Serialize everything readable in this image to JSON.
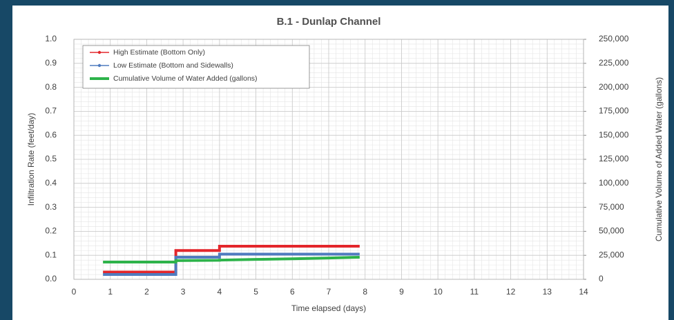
{
  "chart_data": {
    "type": "line",
    "title": "B.1 - Dunlap Channel",
    "xlabel": "Time elapsed (days)",
    "ylabel": "Infiltration Rate (feet/day)",
    "y2label": "Cumulative Volume of Added Water (gallons)",
    "xlim": [
      0,
      14
    ],
    "xticks": [
      0,
      1,
      2,
      3,
      4,
      5,
      6,
      7,
      8,
      9,
      10,
      11,
      12,
      13,
      14
    ],
    "ylim": [
      0,
      1
    ],
    "yticks": [
      {
        "value": 0,
        "label": "0.0"
      },
      0.1,
      0.2,
      0.3,
      0.4,
      0.5,
      0.6,
      0.7,
      0.8,
      0.9,
      {
        "value": 1,
        "label": "1.0"
      }
    ],
    "y2lim": [
      0,
      250000
    ],
    "y2ticks": [
      0,
      {
        "value": 25000,
        "label": "25,000"
      },
      {
        "value": 50000,
        "label": "50,000"
      },
      {
        "value": 75000,
        "label": "75,000"
      },
      {
        "value": 100000,
        "label": "100,000"
      },
      {
        "value": 125000,
        "label": "125,000"
      },
      {
        "value": 150000,
        "label": "150,000"
      },
      {
        "value": 175000,
        "label": "175,000"
      },
      {
        "value": 200000,
        "label": "200,000"
      },
      {
        "value": 225000,
        "label": "225,000"
      },
      {
        "value": 250000,
        "label": "250,000"
      }
    ],
    "grid": true,
    "legend": "upper left",
    "series": [
      {
        "name": "High Estimate (Bottom Only)",
        "color": "#e3262b",
        "axis": "y",
        "x": [
          0.8,
          2.8,
          2.8,
          4.0,
          4.0,
          7.85
        ],
        "values": [
          0.03,
          0.03,
          0.12,
          0.12,
          0.138,
          0.138
        ]
      },
      {
        "name": "Low Estimate (Bottom and Sidewalls)",
        "color": "#4f7bbf",
        "axis": "y",
        "x": [
          0.8,
          2.8,
          2.8,
          4.0,
          4.0,
          7.85
        ],
        "values": [
          0.02,
          0.02,
          0.092,
          0.092,
          0.105,
          0.105
        ]
      },
      {
        "name": "Cumulative Volume of Water Added (gallons)",
        "color": "#2db34a",
        "axis": "y2",
        "x": [
          0.8,
          2.8,
          2.8,
          4.0,
          4.0,
          5.0,
          6.0,
          7.0,
          7.85
        ],
        "values": [
          18000,
          18000,
          19500,
          19800,
          20000,
          20700,
          21400,
          22200,
          23000
        ]
      }
    ]
  }
}
